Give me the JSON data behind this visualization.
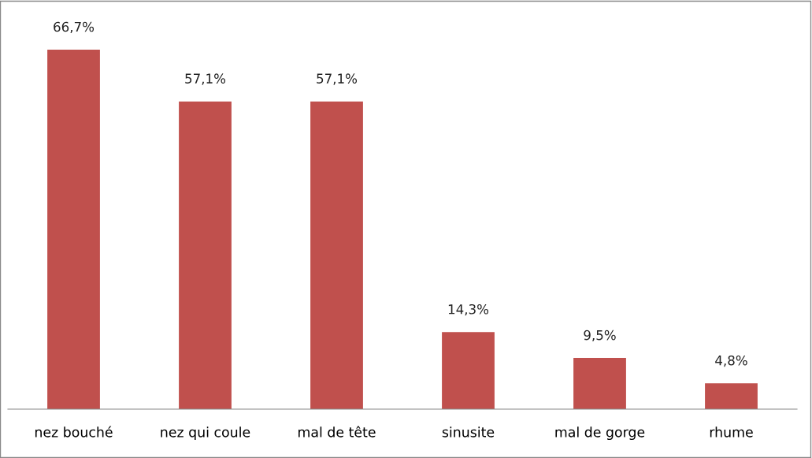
{
  "chart_data": {
    "type": "bar",
    "categories": [
      "nez bouché",
      "nez qui coule",
      "mal de tête",
      "sinusite",
      "mal de gorge",
      "rhume"
    ],
    "values": [
      66.7,
      57.1,
      57.1,
      14.3,
      9.5,
      4.8
    ],
    "value_labels": [
      "66,7%",
      "57,1%",
      "57,1%",
      "14,3%",
      "9,5%",
      "4,8%"
    ],
    "color": "#c0504d",
    "grid": false,
    "legend": false
  }
}
